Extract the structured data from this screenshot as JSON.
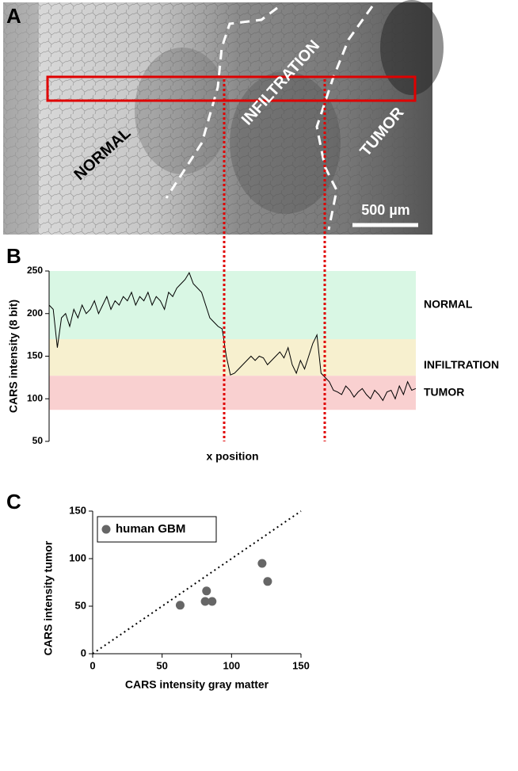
{
  "panel_a": {
    "label": "A",
    "regions": [
      "NORMAL",
      "INFILTRATION",
      "TUMOR"
    ],
    "scale_bar": "500 µm"
  },
  "chart_data": [
    {
      "type": "line",
      "label": "B",
      "y_label": "CARS intensity (8 bit)",
      "x_label": "x position",
      "color": "#000000",
      "values": [
        210,
        205,
        160,
        195,
        200,
        185,
        205,
        195,
        210,
        200,
        205,
        215,
        200,
        210,
        220,
        205,
        215,
        210,
        220,
        215,
        225,
        210,
        220,
        215,
        225,
        210,
        220,
        215,
        205,
        225,
        220,
        230,
        235,
        240,
        248,
        235,
        230,
        225,
        210,
        195,
        190,
        185,
        182,
        150,
        128,
        130,
        135,
        140,
        145,
        150,
        145,
        150,
        148,
        140,
        145,
        150,
        155,
        148,
        160,
        140,
        130,
        145,
        135,
        150,
        165,
        175,
        130,
        125,
        120,
        110,
        108,
        105,
        115,
        110,
        102,
        108,
        112,
        105,
        100,
        110,
        105,
        98,
        108,
        110,
        100,
        115,
        105,
        120,
        110,
        112
      ],
      "ylim": [
        50,
        250
      ],
      "yticks": [
        50,
        100,
        150,
        200,
        250
      ],
      "bands": [
        {
          "label": "NORMAL",
          "from": 170,
          "to": 250,
          "color": "#d9f7e4"
        },
        {
          "label": "INFILTRATION",
          "from": 127,
          "to": 170,
          "color": "#f7f0cf"
        },
        {
          "label": "TUMOR",
          "from": 87,
          "to": 127,
          "color": "#f9d0d0"
        }
      ]
    },
    {
      "type": "scatter",
      "label": "C",
      "x_label": "CARS intensity gray matter",
      "y_label": "CARS intensity tumor",
      "x": [
        63,
        81,
        82,
        86,
        122,
        126
      ],
      "series": [
        {
          "name": "human GBM",
          "color": "#666666",
          "values": [
            51,
            55,
            66,
            55,
            95,
            76
          ]
        }
      ],
      "xlim": [
        0,
        150
      ],
      "ylim": [
        0,
        150
      ],
      "xticks": [
        0,
        50,
        100,
        150
      ],
      "yticks": [
        0,
        50,
        100,
        150
      ],
      "diagonal": true
    }
  ]
}
